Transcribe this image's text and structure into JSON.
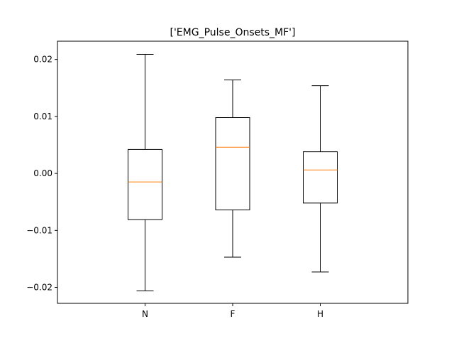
{
  "chart_data": {
    "type": "boxplot",
    "title": "['EMG_Pulse_Onsets_MF']",
    "xlabel": "",
    "ylabel": "",
    "categories": [
      "N",
      "F",
      "H"
    ],
    "ylim": [
      -0.0228,
      0.0232
    ],
    "yticks": [
      -0.02,
      -0.01,
      0.0,
      0.01,
      0.02
    ],
    "ytick_labels": [
      "−0.02",
      "−0.01",
      "0.00",
      "0.01",
      "0.02"
    ],
    "grid": false,
    "boxes": [
      {
        "label": "N",
        "whisker_low": -0.0206,
        "q1": -0.0081,
        "median": -0.0015,
        "q3": 0.0042,
        "whisker_high": 0.0209
      },
      {
        "label": "F",
        "whisker_low": -0.0147,
        "q1": -0.0064,
        "median": 0.0046,
        "q3": 0.0098,
        "whisker_high": 0.0164
      },
      {
        "label": "H",
        "whisker_low": -0.0173,
        "q1": -0.0052,
        "median": 0.0006,
        "q3": 0.0038,
        "whisker_high": 0.0154
      }
    ],
    "colors": {
      "box": "#000000",
      "median": "#ff7f0e",
      "background": "#ffffff"
    }
  }
}
